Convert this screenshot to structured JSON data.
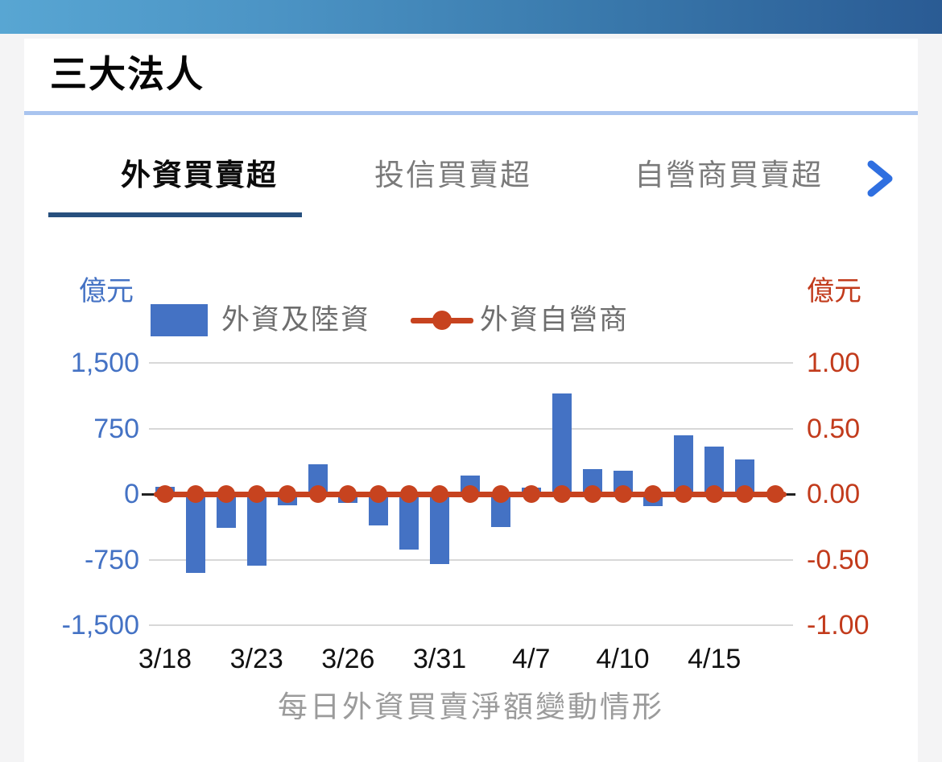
{
  "header": {
    "title": "三大法人"
  },
  "tabs": {
    "items": [
      {
        "label": "外資買賣超",
        "active": true
      },
      {
        "label": "投信買賣超",
        "active": false
      },
      {
        "label": "自營商買賣超",
        "active": false
      }
    ],
    "more_icon": "chevron-right-icon",
    "chevron_color": "#2f6fe0"
  },
  "colors": {
    "bar_blue": "#4472c4",
    "line_red": "#c7431f",
    "left_axis_text": "#4472c4",
    "right_axis_text": "#c23b1c",
    "active_tab_underline": "#27507e",
    "title_divider": "#a9c4ef",
    "gridline": "#d8d8d8"
  },
  "chart_data": {
    "type": "bar",
    "subtype": "combo-bar-line-dual-axis",
    "caption": "每日外資買賣淨額變動情形",
    "grid": true,
    "legend_position": "top",
    "left_axis": {
      "unit": "億元",
      "ticks": [
        "1,500",
        "750",
        "0",
        "-750",
        "-1,500"
      ],
      "range": [
        -1500,
        1500
      ]
    },
    "right_axis": {
      "unit": "億元",
      "ticks": [
        "1.00",
        "0.50",
        "0.00",
        "-0.50",
        "-1.00"
      ],
      "range": [
        -1.0,
        1.0
      ]
    },
    "x_ticks": [
      {
        "index": 0,
        "label": "3/18"
      },
      {
        "index": 3,
        "label": "3/23"
      },
      {
        "index": 6,
        "label": "3/26"
      },
      {
        "index": 9,
        "label": "3/31"
      },
      {
        "index": 12,
        "label": "4/7"
      },
      {
        "index": 15,
        "label": "4/10"
      },
      {
        "index": 18,
        "label": "4/15"
      }
    ],
    "series": [
      {
        "name": "外資及陸資",
        "type": "bar",
        "axis": "left",
        "color": "#4472c4",
        "values": [
          80,
          -900,
          -385,
          -820,
          -130,
          340,
          -100,
          -360,
          -635,
          -800,
          210,
          -380,
          70,
          1150,
          285,
          265,
          -135,
          670,
          545,
          400,
          0
        ]
      },
      {
        "name": "外資自營商",
        "type": "line",
        "axis": "right",
        "color": "#c7431f",
        "values": [
          0,
          0,
          0,
          0,
          0,
          0,
          0,
          0,
          0,
          0,
          0,
          0,
          0,
          0,
          0,
          0,
          0,
          0,
          0,
          0,
          0
        ]
      }
    ]
  }
}
